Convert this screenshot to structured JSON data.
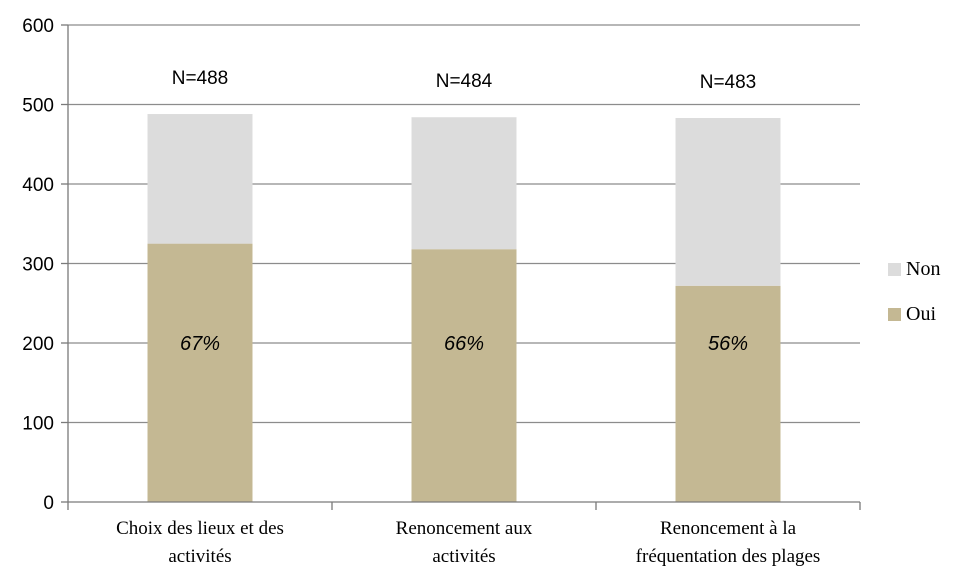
{
  "colors": {
    "oui": "#c4b893",
    "non": "#dcdcdc",
    "grid": "#8c8c8c",
    "axis": "#7a7a7a"
  },
  "chart_data": {
    "type": "bar",
    "stacked": true,
    "title": "",
    "xlabel": "",
    "ylabel": "",
    "ylim": [
      0,
      600
    ],
    "yticks": [
      0,
      100,
      200,
      300,
      400,
      500,
      600
    ],
    "grid": true,
    "legend_position": "right",
    "categories": [
      [
        "Choix des lieux et des",
        "activités"
      ],
      [
        "Renoncement aux",
        "activités"
      ],
      [
        "Renoncement à la",
        "fréquentation des plages"
      ]
    ],
    "totals_labels": [
      "N=488",
      "N=484",
      "N=483"
    ],
    "percent_labels": [
      "67%",
      "66%",
      "56%"
    ],
    "series": [
      {
        "name": "Oui",
        "values": [
          325,
          318,
          272
        ]
      },
      {
        "name": "Non",
        "values": [
          163,
          166,
          211
        ]
      }
    ],
    "legend": [
      "Non",
      "Oui"
    ]
  }
}
